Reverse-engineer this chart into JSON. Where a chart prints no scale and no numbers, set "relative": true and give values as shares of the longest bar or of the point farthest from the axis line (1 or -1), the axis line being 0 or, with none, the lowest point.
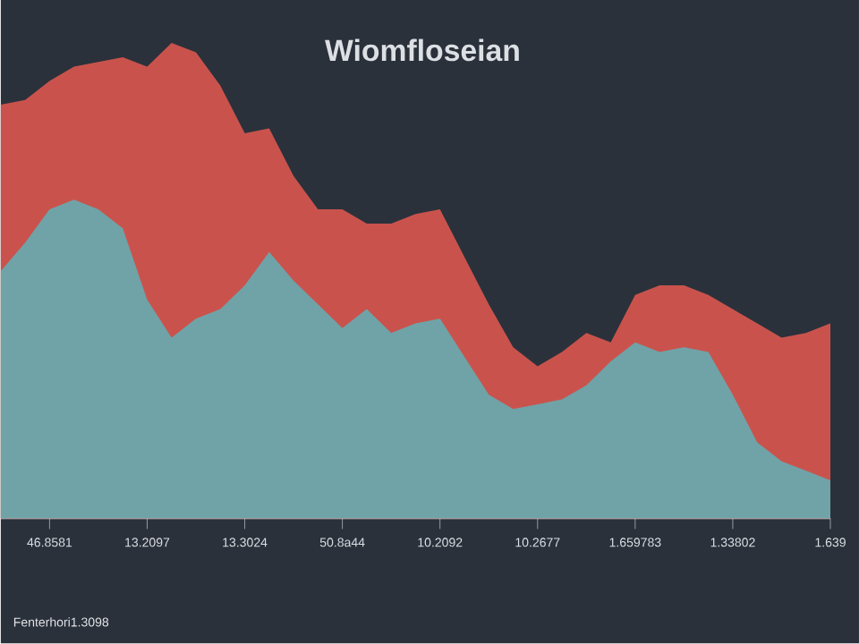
{
  "chart_data": {
    "type": "area",
    "title": "Wiomfloseian",
    "relative": true,
    "categories": [
      null,
      null,
      "46.8581",
      null,
      null,
      null,
      "13.2097",
      null,
      null,
      null,
      "13.3024",
      null,
      null,
      null,
      "50.8a44",
      null,
      null,
      null,
      "10.2092",
      null,
      null,
      null,
      "10.2677",
      null,
      null,
      null,
      "1.659783",
      null,
      null,
      null,
      "1.33802",
      null,
      null,
      null,
      "1.639"
    ],
    "annotations": [
      "Fenterhori1.3098"
    ],
    "series": [
      {
        "color": "#c9534c",
        "values": [
          0.87,
          0.88,
          0.92,
          0.95,
          0.96,
          0.97,
          0.95,
          1.0,
          0.98,
          0.91,
          0.81,
          0.82,
          0.72,
          0.65,
          0.65,
          0.62,
          0.62,
          0.64,
          0.65,
          0.55,
          0.45,
          0.36,
          0.32,
          0.35,
          0.39,
          0.37,
          0.47,
          0.49,
          0.49,
          0.47,
          0.44,
          0.41,
          0.38,
          0.39,
          0.41
        ]
      },
      {
        "color": "#6fa3a8",
        "values": [
          0.52,
          0.58,
          0.65,
          0.67,
          0.65,
          0.61,
          0.46,
          0.38,
          0.42,
          0.44,
          0.49,
          0.56,
          0.5,
          0.45,
          0.4,
          0.44,
          0.39,
          0.41,
          0.42,
          0.34,
          0.26,
          0.23,
          0.24,
          0.25,
          0.28,
          0.33,
          0.37,
          0.35,
          0.36,
          0.35,
          0.26,
          0.16,
          0.12,
          0.1,
          0.08
        ]
      }
    ]
  }
}
